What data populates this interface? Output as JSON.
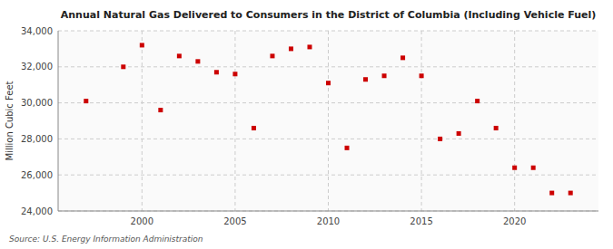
{
  "chart_data": {
    "type": "scatter",
    "title": "Annual Natural Gas Delivered to Consumers in the District of Columbia (Including Vehicle Fuel)",
    "ylabel": "Million Cubic Feet",
    "annotations": [
      "Source: U.S. Energy Information Administration"
    ],
    "x": [
      1997,
      1999,
      2000,
      2001,
      2002,
      2003,
      2004,
      2005,
      2006,
      2007,
      2008,
      2009,
      2010,
      2011,
      2012,
      2013,
      2014,
      2015,
      2016,
      2017,
      2018,
      2019,
      2020,
      2021,
      2022,
      2023
    ],
    "values": [
      30100,
      32000,
      33200,
      29600,
      32600,
      32300,
      31700,
      31600,
      28600,
      32600,
      33000,
      33100,
      31100,
      27500,
      31300,
      31500,
      32500,
      31500,
      28000,
      28300,
      30100,
      28600,
      26400,
      26400,
      25000,
      25000
    ],
    "color": "#cc0000",
    "marker": "square",
    "xlim": [
      1995.5,
      2024.5
    ],
    "ylim": [
      24000,
      34000
    ],
    "xticks": [
      2000,
      2005,
      2010,
      2015,
      2020
    ],
    "yticks": [
      {
        "value": 24000,
        "label": "24,000"
      },
      {
        "value": 26000,
        "label": "26,000"
      },
      {
        "value": 28000,
        "label": "28,000"
      },
      {
        "value": 30000,
        "label": "30,000"
      },
      {
        "value": 32000,
        "label": "32,000"
      },
      {
        "value": 34000,
        "label": "34,000"
      }
    ],
    "grid": true
  }
}
